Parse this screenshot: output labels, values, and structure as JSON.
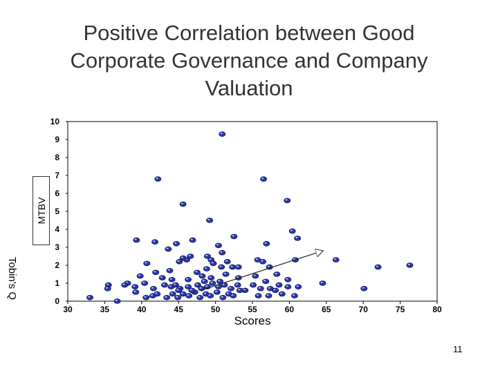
{
  "slide": {
    "title_lines": [
      "Positive Correlation between Good",
      "Corporate Governance and Company",
      "Valuation"
    ],
    "page_number": "11"
  },
  "chart_data": {
    "type": "scatter",
    "title": "Positive Correlation between Good Corporate Governance and Company Valuation",
    "xlabel": "Scores",
    "ylabel": "MTBV",
    "ylabel_ghost": "Tobin's Q",
    "xlim": [
      30,
      80
    ],
    "ylim": [
      0,
      10
    ],
    "xticks": [
      "30",
      "35",
      "40",
      "45",
      "50",
      "55",
      "60",
      "65",
      "70",
      "75",
      "80"
    ],
    "yticks": [
      "0",
      "1",
      "2",
      "3",
      "4",
      "5",
      "6",
      "7",
      "8",
      "9",
      "10"
    ],
    "grid": false,
    "point_color": "#2b38a8",
    "trend_arrow": {
      "from": [
        48,
        0.6
      ],
      "to": [
        64.5,
        2.8
      ]
    },
    "points": [
      [
        50.9,
        9.3
      ],
      [
        42.2,
        6.8
      ],
      [
        56.5,
        6.8
      ],
      [
        45.6,
        5.4
      ],
      [
        59.7,
        5.6
      ],
      [
        49.2,
        4.5
      ],
      [
        60.4,
        3.9
      ],
      [
        61.1,
        3.5
      ],
      [
        52.5,
        3.6
      ],
      [
        56.9,
        3.2
      ],
      [
        39.3,
        3.4
      ],
      [
        41.8,
        3.3
      ],
      [
        44.7,
        3.2
      ],
      [
        46.9,
        3.4
      ],
      [
        50.4,
        3.1
      ],
      [
        43.6,
        2.9
      ],
      [
        50.9,
        2.7
      ],
      [
        46.6,
        2.5
      ],
      [
        48.9,
        2.5
      ],
      [
        46.1,
        2.3
      ],
      [
        45.1,
        2.2
      ],
      [
        45.6,
        2.4
      ],
      [
        49.4,
        2.3
      ],
      [
        51.6,
        2.2
      ],
      [
        55.7,
        2.3
      ],
      [
        56.4,
        2.2
      ],
      [
        60.8,
        2.3
      ],
      [
        66.3,
        2.3
      ],
      [
        76.3,
        2.0
      ],
      [
        72.0,
        1.9
      ],
      [
        57.3,
        1.9
      ],
      [
        40.7,
        2.1
      ],
      [
        41.9,
        1.6
      ],
      [
        43.8,
        1.7
      ],
      [
        47.5,
        1.6
      ],
      [
        48.8,
        1.8
      ],
      [
        50.8,
        1.9
      ],
      [
        52.3,
        1.9
      ],
      [
        53.1,
        1.9
      ],
      [
        49.7,
        2.1
      ],
      [
        39.8,
        1.4
      ],
      [
        42.8,
        1.3
      ],
      [
        44.1,
        1.2
      ],
      [
        46.3,
        1.2
      ],
      [
        48.2,
        1.4
      ],
      [
        49.4,
        1.3
      ],
      [
        51.4,
        1.5
      ],
      [
        53.1,
        1.3
      ],
      [
        55.4,
        1.4
      ],
      [
        56.8,
        1.1
      ],
      [
        58.3,
        1.5
      ],
      [
        59.8,
        1.2
      ],
      [
        38.1,
        1.0
      ],
      [
        39.1,
        0.8
      ],
      [
        40.4,
        1.0
      ],
      [
        41.6,
        0.7
      ],
      [
        43.1,
        0.9
      ],
      [
        44.0,
        0.8
      ],
      [
        44.6,
        0.9
      ],
      [
        45.2,
        0.7
      ],
      [
        46.3,
        0.8
      ],
      [
        47.6,
        0.9
      ],
      [
        48.1,
        0.7
      ],
      [
        48.9,
        0.8
      ],
      [
        49.6,
        1.0
      ],
      [
        50.4,
        0.8
      ],
      [
        51.2,
        0.9
      ],
      [
        52.1,
        0.7
      ],
      [
        53.0,
        0.9
      ],
      [
        54.0,
        0.6
      ],
      [
        55.1,
        0.9
      ],
      [
        56.1,
        0.7
      ],
      [
        57.4,
        0.7
      ],
      [
        58.1,
        0.6
      ],
      [
        58.6,
        0.9
      ],
      [
        59.8,
        0.8
      ],
      [
        61.2,
        0.8
      ],
      [
        64.5,
        1.0
      ],
      [
        70.1,
        0.7
      ],
      [
        35.5,
        0.9
      ],
      [
        35.4,
        0.7
      ],
      [
        37.7,
        0.9
      ],
      [
        33.0,
        0.2
      ],
      [
        39.2,
        0.5
      ],
      [
        40.6,
        0.2
      ],
      [
        41.5,
        0.3
      ],
      [
        42.1,
        0.4
      ],
      [
        43.4,
        0.2
      ],
      [
        44.2,
        0.4
      ],
      [
        44.9,
        0.2
      ],
      [
        45.6,
        0.4
      ],
      [
        46.4,
        0.3
      ],
      [
        47.2,
        0.5
      ],
      [
        47.9,
        0.2
      ],
      [
        48.7,
        0.4
      ],
      [
        49.3,
        0.3
      ],
      [
        50.2,
        0.5
      ],
      [
        51.0,
        0.2
      ],
      [
        51.8,
        0.4
      ],
      [
        52.4,
        0.3
      ],
      [
        53.3,
        0.6
      ],
      [
        55.8,
        0.3
      ],
      [
        57.2,
        0.3
      ],
      [
        59.0,
        0.4
      ],
      [
        60.7,
        0.3
      ],
      [
        36.7,
        0.0
      ],
      [
        45.0,
        0.6
      ],
      [
        46.8,
        0.6
      ],
      [
        48.5,
        1.1
      ],
      [
        50.6,
        1.1
      ]
    ]
  }
}
